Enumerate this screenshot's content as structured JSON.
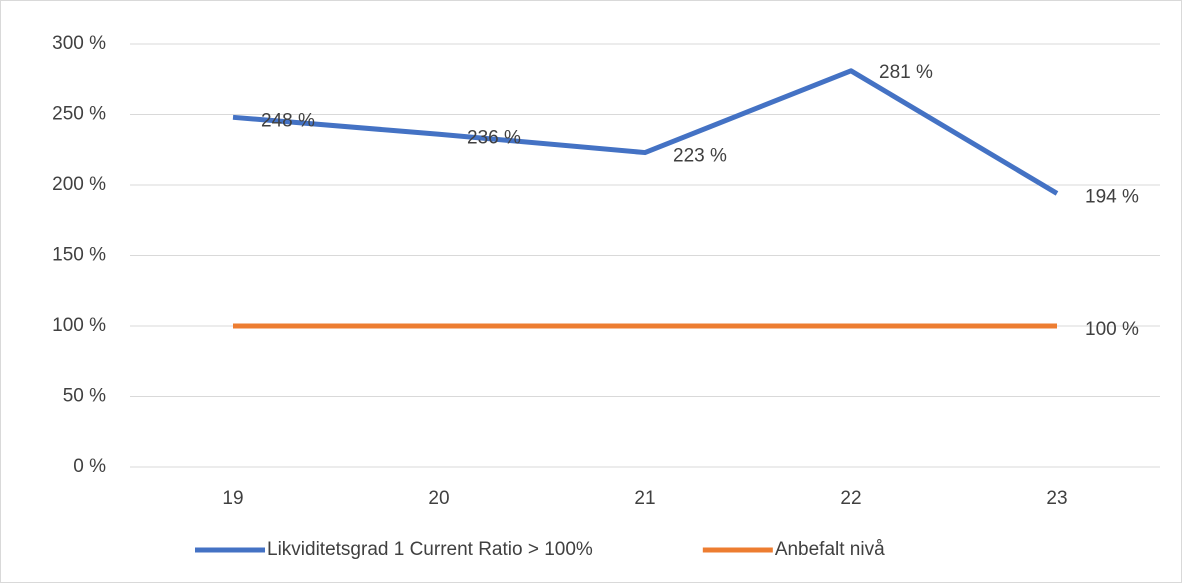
{
  "chart_data": {
    "type": "line",
    "categories": [
      "19",
      "20",
      "21",
      "22",
      "23"
    ],
    "series": [
      {
        "name": "Likviditetsgrad 1 Current Ratio > 100%",
        "color": "#4472c4",
        "values": [
          248,
          236,
          223,
          281,
          194
        ],
        "value_labels": [
          "248 %",
          "236 %",
          "223 %",
          "281 %",
          "194 %"
        ]
      },
      {
        "name": "Anbefalt nivå",
        "color": "#ed7d31",
        "values": [
          100,
          100,
          100,
          100,
          100
        ],
        "value_labels": [
          null,
          null,
          null,
          null,
          "100 %"
        ]
      }
    ],
    "ylim": [
      0,
      300
    ],
    "yticks": [
      {
        "value": 0,
        "label": "0 %"
      },
      {
        "value": 50,
        "label": "50 %"
      },
      {
        "value": 100,
        "label": "100 %"
      },
      {
        "value": 150,
        "label": "150 %"
      },
      {
        "value": 200,
        "label": "200 %"
      },
      {
        "value": 250,
        "label": "250 %"
      },
      {
        "value": 300,
        "label": "300 %"
      }
    ],
    "grid": true,
    "legend": "bottom"
  }
}
